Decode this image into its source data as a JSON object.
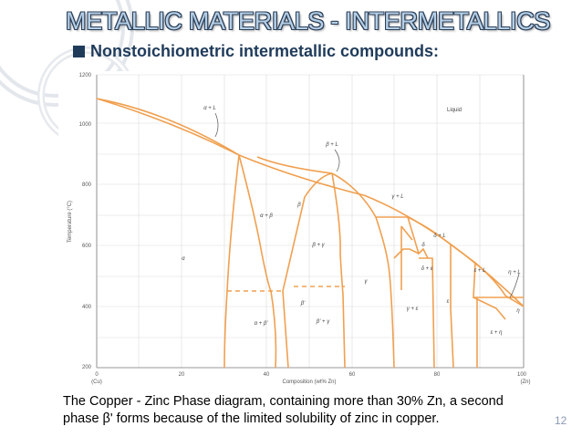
{
  "slide": {
    "title": "METALLIC MATERIALS - INTERMETALLICS",
    "bullet": "Nonstoichiometric intermetallic compounds:",
    "caption_line1": "The Copper - Zinc Phase diagram, containing more than 30% Zn, a second",
    "caption_line2": "phase β' forms  because of the limited solubility of zinc in copper.",
    "page_number": "12"
  },
  "diagram": {
    "y_axis_label": "Temperature (°C)",
    "y_ticks": [
      "1200",
      "1000",
      "800",
      "600",
      "400",
      "200"
    ],
    "x_axis_label": "Composition (wt% Zn)",
    "x_ticks": [
      "0",
      "20",
      "40",
      "60",
      "80",
      "100"
    ],
    "x_end_left": "(Cu)",
    "x_end_right": "(Zn)",
    "regions": {
      "liquid": "Liquid",
      "alpha_L": "α + L",
      "beta_L": "β + L",
      "gamma_L": "γ + L",
      "delta_L": "δ + L",
      "epsilon_L": "ε + L",
      "eta_L": "η + L",
      "alpha": "α",
      "alpha_beta": "α + β",
      "beta": "β",
      "beta_gamma": "β + γ",
      "gamma": "γ",
      "delta": "δ",
      "delta_eps": "δ + ε",
      "gamma_eps": "γ + ε",
      "eps": "ε",
      "eps_eta": "ε + η",
      "eta": "η",
      "alpha_betap": "α + β'",
      "betap": "β'",
      "betap_gamma": "β' + γ"
    },
    "colors": {
      "phase_line": "#f0a050",
      "grid": "#d9d9d9",
      "text": "#555555"
    }
  }
}
